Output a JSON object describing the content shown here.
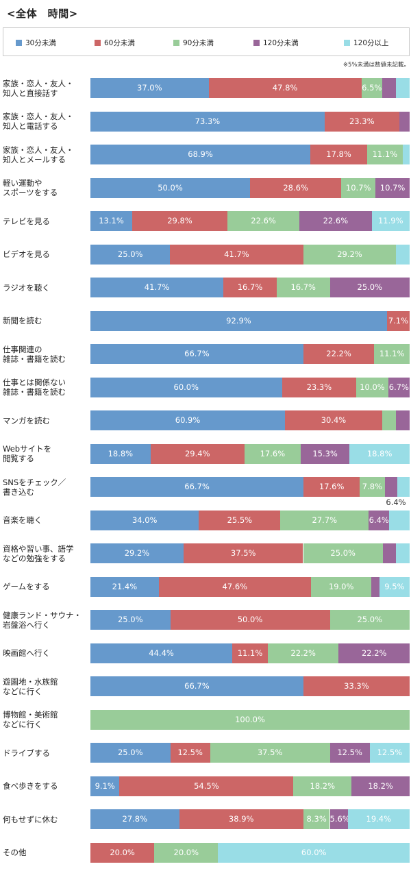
{
  "chart_data": {
    "type": "bar",
    "orientation": "horizontal",
    "stacked": true,
    "title": "<全体　時間>",
    "note": "※5%未満は数値未記載。",
    "legend_position": "top",
    "xlim": [
      0,
      100
    ],
    "grid": false,
    "series": [
      {
        "name": "30分未満",
        "color": "#6699cc"
      },
      {
        "name": "60分未満",
        "color": "#cc6666"
      },
      {
        "name": "90分未満",
        "color": "#99cc99"
      },
      {
        "name": "120分未満",
        "color": "#996699"
      },
      {
        "name": "120分以上",
        "color": "#99dde6"
      }
    ],
    "categories": [
      "家族・恋人・友人・\n知人と直接話す",
      "家族・恋人・友人・\n知人と電話する",
      "家族・恋人・友人・\n知人とメールする",
      "軽い運動や\nスポーツをする",
      "テレビを見る",
      "ビデオを見る",
      "ラジオを聴く",
      "新聞を読む",
      "仕事関連の\n雑誌・書籍を読む",
      "仕事とは関係ない\n雑誌・書籍を読む",
      "マンガを読む",
      "Webサイトを\n閲覧する",
      "SNSをチェック／\n書き込む",
      "音楽を聴く",
      "資格や習い事、語学\nなどの勉強をする",
      "ゲームをする",
      "健康ランド・サウナ・\n岩盤浴へ行く",
      "映画館へ行く",
      "遊園地・水族館\nなどに行く",
      "博物館・美術館\nなどに行く",
      "ドライブする",
      "食べ歩きをする",
      "何もせずに休む",
      "その他"
    ],
    "values": [
      [
        37.0,
        47.8,
        6.5,
        4.3,
        4.3
      ],
      [
        73.3,
        23.3,
        0,
        3.3,
        0
      ],
      [
        68.9,
        17.8,
        11.1,
        0,
        2.2
      ],
      [
        50.0,
        28.6,
        10.7,
        10.7,
        0
      ],
      [
        13.1,
        29.8,
        22.6,
        22.6,
        11.9
      ],
      [
        25.0,
        41.7,
        29.2,
        0,
        4.2
      ],
      [
        41.7,
        16.7,
        16.7,
        25.0,
        0
      ],
      [
        92.9,
        7.1,
        0,
        0,
        0
      ],
      [
        66.7,
        22.2,
        11.1,
        0,
        0
      ],
      [
        60.0,
        23.3,
        10.0,
        6.7,
        0
      ],
      [
        60.9,
        30.4,
        4.3,
        4.3,
        0
      ],
      [
        18.8,
        29.4,
        17.6,
        15.3,
        18.8
      ],
      [
        66.7,
        17.6,
        7.8,
        3.9,
        3.9
      ],
      [
        34.0,
        25.5,
        27.7,
        6.4,
        6.4
      ],
      [
        29.2,
        37.5,
        25.0,
        4.2,
        4.2
      ],
      [
        21.4,
        47.6,
        19.0,
        2.4,
        9.5
      ],
      [
        25.0,
        50.0,
        25.0,
        0,
        0
      ],
      [
        44.4,
        11.1,
        22.2,
        22.2,
        0
      ],
      [
        66.7,
        33.3,
        0,
        0,
        0
      ],
      [
        0,
        0,
        100.0,
        0,
        0
      ],
      [
        25.0,
        12.5,
        37.5,
        12.5,
        12.5
      ],
      [
        9.1,
        54.5,
        18.2,
        18.2,
        0
      ],
      [
        27.8,
        38.9,
        8.3,
        5.6,
        19.4
      ],
      [
        0,
        20.0,
        20.0,
        0,
        60.0
      ]
    ],
    "labels": [
      [
        "37.0%",
        "47.8%",
        "6.5%",
        "",
        ""
      ],
      [
        "73.3%",
        "23.3%",
        "",
        "",
        ""
      ],
      [
        "68.9%",
        "17.8%",
        "11.1%",
        "",
        ""
      ],
      [
        "50.0%",
        "28.6%",
        "10.7%",
        "10.7%",
        ""
      ],
      [
        "13.1%",
        "29.8%",
        "22.6%",
        "22.6%",
        "11.9%"
      ],
      [
        "25.0%",
        "41.7%",
        "29.2%",
        "",
        ""
      ],
      [
        "41.7%",
        "16.7%",
        "16.7%",
        "25.0%",
        ""
      ],
      [
        "92.9%",
        "7.1%",
        "",
        "",
        ""
      ],
      [
        "66.7%",
        "22.2%",
        "11.1%",
        "",
        ""
      ],
      [
        "60.0%",
        "23.3%",
        "10.0%",
        "6.7%",
        ""
      ],
      [
        "60.9%",
        "30.4%",
        "",
        "",
        ""
      ],
      [
        "18.8%",
        "29.4%",
        "17.6%",
        "15.3%",
        "18.8%"
      ],
      [
        "66.7%",
        "17.6%",
        "7.8%",
        "",
        ""
      ],
      [
        "34.0%",
        "25.5%",
        "27.7%",
        "6.4%",
        "6.4%"
      ],
      [
        "29.2%",
        "37.5%",
        "25.0%",
        "",
        ""
      ],
      [
        "21.4%",
        "47.6%",
        "19.0%",
        "",
        "9.5%"
      ],
      [
        "25.0%",
        "50.0%",
        "25.0%",
        "",
        ""
      ],
      [
        "44.4%",
        "11.1%",
        "22.2%",
        "22.2%",
        ""
      ],
      [
        "66.7%",
        "33.3%",
        "",
        "",
        ""
      ],
      [
        "",
        "",
        "100.0%",
        "",
        ""
      ],
      [
        "25.0%",
        "12.5%",
        "37.5%",
        "12.5%",
        "12.5%"
      ],
      [
        "9.1%",
        "54.5%",
        "18.2%",
        "18.2%",
        ""
      ],
      [
        "27.8%",
        "38.9%",
        "8.3%",
        "5.6%",
        "19.4%"
      ],
      [
        "",
        "20.0%",
        "20.0%",
        "",
        "60.0%"
      ]
    ]
  }
}
